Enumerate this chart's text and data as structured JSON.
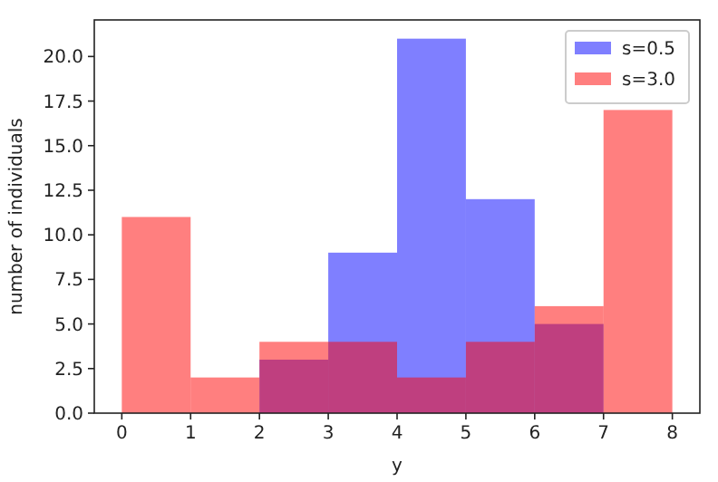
{
  "chart_data": {
    "type": "histogram",
    "xlabel": "y",
    "ylabel": "number of individuals",
    "bins": [
      0,
      1,
      2,
      3,
      4,
      5,
      6,
      7,
      8
    ],
    "series": [
      {
        "name": "s=0.5",
        "color": "#0000ff",
        "values": [
          0,
          0,
          3,
          9,
          21,
          12,
          5,
          0
        ]
      },
      {
        "name": "s=3.0",
        "color": "#ff0000",
        "values": [
          11,
          2,
          4,
          4,
          2,
          4,
          6,
          17
        ]
      }
    ],
    "xlim": [
      -0.4,
      8.4
    ],
    "xticks": [
      0,
      1,
      2,
      3,
      4,
      5,
      6,
      7,
      8
    ],
    "ylim": [
      0,
      22.05
    ],
    "yticks": [
      {
        "value": 0,
        "label": "0.0"
      },
      {
        "value": 2.5,
        "label": "2.5"
      },
      {
        "value": 5,
        "label": "5.0"
      },
      {
        "value": 7.5,
        "label": "7.5"
      },
      {
        "value": 10,
        "label": "10.0"
      },
      {
        "value": 12.5,
        "label": "12.5"
      },
      {
        "value": 15,
        "label": "15.0"
      },
      {
        "value": 17.5,
        "label": "17.5"
      },
      {
        "value": 20,
        "label": "20.0"
      }
    ],
    "grid": false,
    "legend": "top right"
  }
}
